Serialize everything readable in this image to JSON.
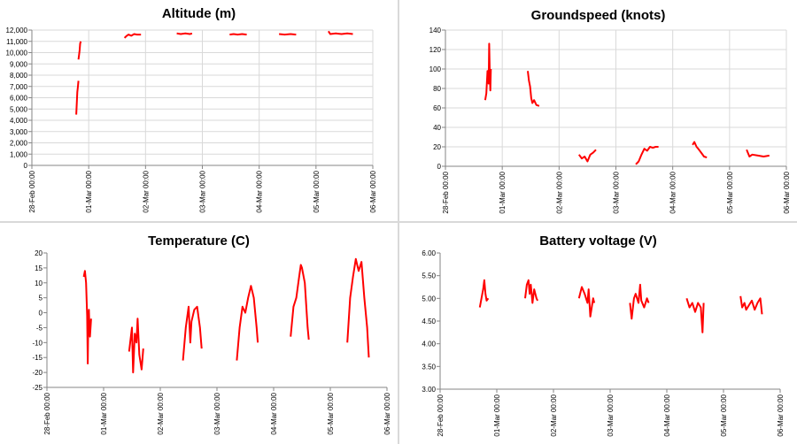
{
  "x_ticks": [
    "28-Feb 00:00",
    "01-Mar 00:00",
    "02-Mar 00:00",
    "03-Mar 00:00",
    "04-Mar 00:00",
    "05-Mar 00:00",
    "06-Mar 00:00"
  ],
  "line_color": "#ff0000",
  "grid_color": "#d9d9d9",
  "chart_data": [
    {
      "type": "line",
      "title": "Altitude (m)",
      "xlabel": "",
      "ylabel": "",
      "xlim": [
        0,
        6
      ],
      "ylim": [
        0,
        12000
      ],
      "ystep": 1000,
      "ydecimals": 0,
      "ythousands": true,
      "grid": true,
      "series": [
        {
          "segments": [
            {
              "x": [
                0.78,
                0.79,
                0.8,
                0.81,
                0.82
              ],
              "y": [
                4500,
                5500,
                6500,
                7000,
                7500
              ]
            },
            {
              "x": [
                0.82,
                0.83,
                0.84,
                0.85,
                0.86
              ],
              "y": [
                9400,
                9800,
                10200,
                10800,
                11000
              ]
            },
            {
              "x": [
                1.63,
                1.67,
                1.7,
                1.75,
                1.8,
                1.85,
                1.92
              ],
              "y": [
                11300,
                11500,
                11600,
                11500,
                11650,
                11600,
                11600
              ]
            },
            {
              "x": [
                2.55,
                2.62,
                2.7,
                2.78,
                2.82
              ],
              "y": [
                11700,
                11650,
                11700,
                11650,
                11700
              ]
            },
            {
              "x": [
                3.48,
                3.55,
                3.62,
                3.7,
                3.78
              ],
              "y": [
                11600,
                11650,
                11600,
                11650,
                11600
              ]
            },
            {
              "x": [
                4.35,
                4.45,
                4.55,
                4.65
              ],
              "y": [
                11650,
                11600,
                11650,
                11600
              ]
            },
            {
              "x": [
                5.22,
                5.25,
                5.35,
                5.45,
                5.55,
                5.65
              ],
              "y": [
                11900,
                11650,
                11700,
                11650,
                11700,
                11650
              ]
            }
          ]
        }
      ]
    },
    {
      "type": "line",
      "title": "Groundspeed (knots)",
      "xlabel": "",
      "ylabel": "",
      "xlim": [
        0,
        6
      ],
      "ylim": [
        0,
        140
      ],
      "ystep": 20,
      "ydecimals": 0,
      "ythousands": false,
      "grid": true,
      "series": [
        {
          "segments": [
            {
              "x": [
                0.7,
                0.72,
                0.74,
                0.76,
                0.77,
                0.78,
                0.79,
                0.8
              ],
              "y": [
                68,
                75,
                98,
                85,
                126,
                95,
                78,
                100
              ]
            },
            {
              "x": [
                1.45,
                1.47,
                1.49,
                1.51,
                1.53,
                1.56,
                1.6,
                1.65
              ],
              "y": [
                98,
                88,
                82,
                70,
                65,
                68,
                63,
                62
              ]
            },
            {
              "x": [
                2.35,
                2.4,
                2.45,
                2.5,
                2.55,
                2.6,
                2.65
              ],
              "y": [
                12,
                8,
                10,
                5,
                12,
                14,
                17
              ]
            },
            {
              "x": [
                3.35,
                3.4,
                3.45,
                3.5,
                3.55,
                3.6,
                3.65,
                3.7,
                3.75
              ],
              "y": [
                2,
                5,
                12,
                18,
                16,
                20,
                19,
                20,
                20
              ]
            },
            {
              "x": [
                4.35,
                4.38,
                4.42,
                4.45,
                4.5,
                4.55,
                4.6
              ],
              "y": [
                22,
                25,
                20,
                18,
                14,
                10,
                9
              ]
            },
            {
              "x": [
                5.3,
                5.35,
                5.4,
                5.5,
                5.6,
                5.7
              ],
              "y": [
                17,
                10,
                12,
                11,
                10,
                11
              ]
            }
          ]
        }
      ]
    },
    {
      "type": "line",
      "title": "Temperature (C)",
      "xlabel": "",
      "ylabel": "",
      "xlim": [
        0,
        6
      ],
      "ylim": [
        -25,
        20
      ],
      "ystep": 5,
      "ydecimals": 0,
      "ythousands": false,
      "grid": false,
      "series": [
        {
          "segments": [
            {
              "x": [
                0.65,
                0.67,
                0.69,
                0.71,
                0.72,
                0.73,
                0.74,
                0.75,
                0.76,
                0.78
              ],
              "y": [
                12,
                14,
                10,
                -1,
                -17,
                -3,
                1,
                -5,
                -8,
                -2
              ]
            },
            {
              "x": [
                1.45,
                1.5,
                1.52,
                1.55,
                1.58,
                1.6,
                1.63,
                1.67,
                1.7
              ],
              "y": [
                -13,
                -5,
                -20,
                -7,
                -10,
                -2,
                -14,
                -19,
                -12
              ]
            },
            {
              "x": [
                2.4,
                2.45,
                2.5,
                2.53,
                2.55,
                2.6,
                2.65,
                2.7,
                2.73
              ],
              "y": [
                -16,
                -5,
                2,
                -10,
                -3,
                1,
                2,
                -5,
                -12
              ]
            },
            {
              "x": [
                3.35,
                3.4,
                3.45,
                3.5,
                3.55,
                3.6,
                3.65,
                3.7,
                3.72
              ],
              "y": [
                -16,
                -5,
                2,
                0,
                5,
                9,
                5,
                -5,
                -10
              ]
            },
            {
              "x": [
                4.3,
                4.35,
                4.4,
                4.45,
                4.48,
                4.5,
                4.55,
                4.6,
                4.62
              ],
              "y": [
                -8,
                2,
                5,
                12,
                16,
                15,
                10,
                -5,
                -9
              ]
            },
            {
              "x": [
                5.3,
                5.35,
                5.4,
                5.45,
                5.5,
                5.55,
                5.6,
                5.65,
                5.68
              ],
              "y": [
                -10,
                5,
                12,
                18,
                14,
                17,
                5,
                -5,
                -15
              ]
            }
          ]
        }
      ]
    },
    {
      "type": "line",
      "title": "Battery voltage (V)",
      "xlabel": "",
      "ylabel": "",
      "xlim": [
        0,
        6
      ],
      "ylim": [
        3.0,
        6.0
      ],
      "ystep": 0.5,
      "ydecimals": 2,
      "ythousands": false,
      "grid": false,
      "series": [
        {
          "segments": [
            {
              "x": [
                0.7,
                0.73,
                0.76,
                0.78,
                0.8,
                0.82,
                0.85
              ],
              "y": [
                4.8,
                5.0,
                5.2,
                5.4,
                5.1,
                4.95,
                5.0
              ]
            },
            {
              "x": [
                1.5,
                1.53,
                1.56,
                1.58,
                1.6,
                1.63,
                1.66,
                1.7,
                1.72
              ],
              "y": [
                5.0,
                5.3,
                5.4,
                5.1,
                5.3,
                4.9,
                5.2,
                5.0,
                4.95
              ]
            },
            {
              "x": [
                2.45,
                2.5,
                2.55,
                2.6,
                2.62,
                2.65,
                2.7,
                2.72
              ],
              "y": [
                5.0,
                5.25,
                5.1,
                4.9,
                5.2,
                4.6,
                5.0,
                4.9
              ]
            },
            {
              "x": [
                3.35,
                3.38,
                3.42,
                3.45,
                3.5,
                3.53,
                3.55,
                3.6,
                3.65,
                3.68
              ],
              "y": [
                4.9,
                4.55,
                5.0,
                5.1,
                4.9,
                5.3,
                4.95,
                4.8,
                5.0,
                4.9
              ]
            },
            {
              "x": [
                4.35,
                4.4,
                4.45,
                4.5,
                4.55,
                4.6,
                4.63,
                4.65
              ],
              "y": [
                5.0,
                4.8,
                4.9,
                4.7,
                4.9,
                4.8,
                4.25,
                4.9
              ]
            },
            {
              "x": [
                5.3,
                5.33,
                5.37,
                5.4,
                5.45,
                5.5,
                5.55,
                5.6,
                5.65,
                5.68
              ],
              "y": [
                5.05,
                4.8,
                4.9,
                4.75,
                4.85,
                4.95,
                4.75,
                4.9,
                5.0,
                4.65
              ]
            }
          ]
        }
      ]
    }
  ]
}
